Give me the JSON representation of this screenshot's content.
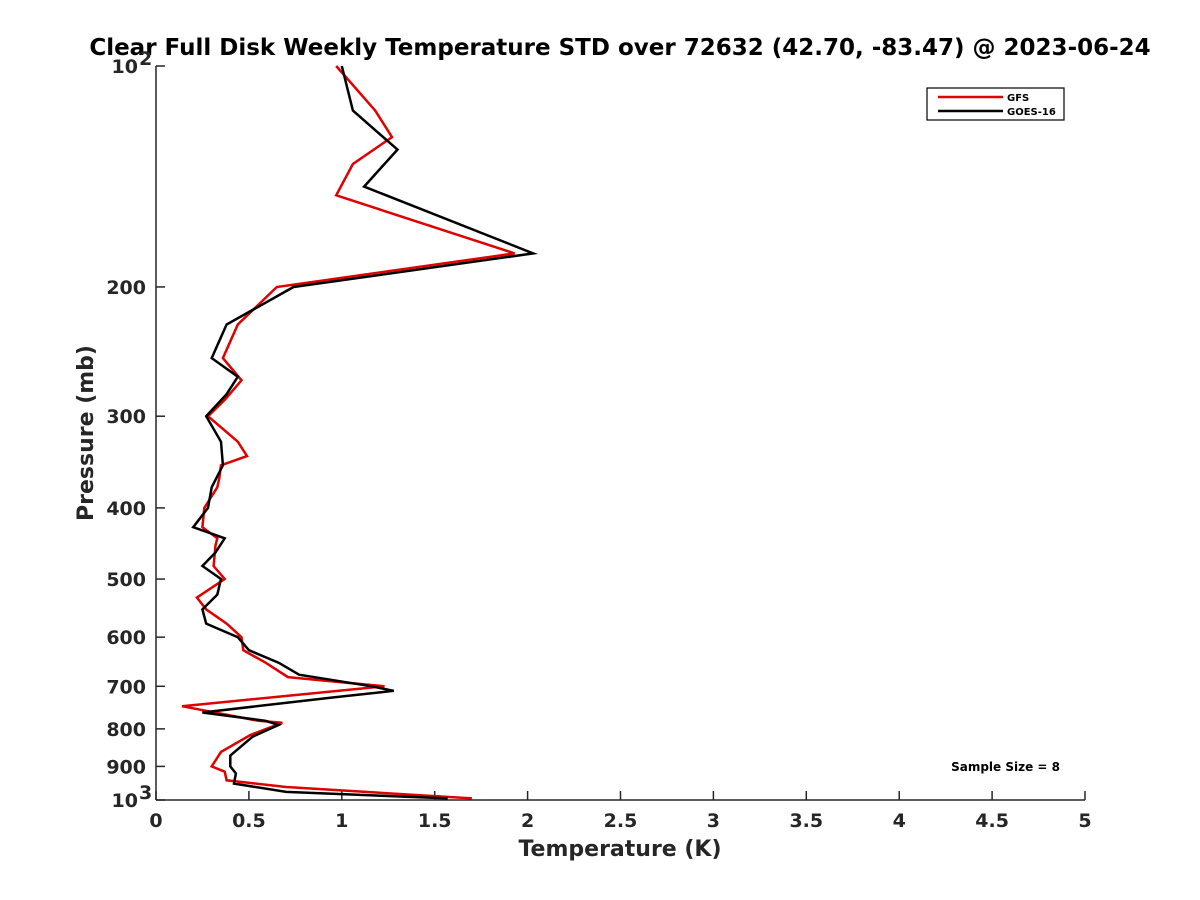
{
  "chart_data": {
    "type": "line",
    "title": "Clear Full Disk Weekly Temperature STD over 72632 (42.70, -83.47) @ 2023-06-24",
    "xlabel": "Temperature (K)",
    "ylabel": "Pressure (mb)",
    "xlim": [
      0,
      5
    ],
    "ylim": [
      100,
      1000
    ],
    "yscale": "log",
    "y_reversed": true,
    "grid": false,
    "x_ticks": [
      "0",
      "0.5",
      "1",
      "1.5",
      "2",
      "2.5",
      "3",
      "3.5",
      "4",
      "4.5",
      "5"
    ],
    "y_ticks": [
      {
        "value": 100,
        "label": "10",
        "sup": "2"
      },
      {
        "value": 200,
        "label": "200"
      },
      {
        "value": 300,
        "label": "300"
      },
      {
        "value": 400,
        "label": "400"
      },
      {
        "value": 500,
        "label": "500"
      },
      {
        "value": 600,
        "label": "600"
      },
      {
        "value": 700,
        "label": "700"
      },
      {
        "value": 800,
        "label": "800"
      },
      {
        "value": 900,
        "label": "900"
      },
      {
        "value": 1000,
        "label": "10",
        "sup": "3"
      }
    ],
    "legend": {
      "placement": "top-right"
    },
    "annotation": "Sample Size = 8",
    "series": [
      {
        "name": "GFS",
        "color": "#e00000",
        "points": [
          [
            0.97,
            100
          ],
          [
            1.18,
            115
          ],
          [
            1.27,
            125
          ],
          [
            1.06,
            136
          ],
          [
            0.97,
            150
          ],
          [
            1.93,
            180
          ],
          [
            0.65,
            200
          ],
          [
            0.44,
            225
          ],
          [
            0.36,
            250
          ],
          [
            0.46,
            268
          ],
          [
            0.37,
            285
          ],
          [
            0.28,
            300
          ],
          [
            0.44,
            325
          ],
          [
            0.49,
            340
          ],
          [
            0.35,
            350
          ],
          [
            0.34,
            365
          ],
          [
            0.33,
            375
          ],
          [
            0.26,
            400
          ],
          [
            0.25,
            425
          ],
          [
            0.33,
            440
          ],
          [
            0.32,
            450
          ],
          [
            0.31,
            480
          ],
          [
            0.37,
            500
          ],
          [
            0.22,
            530
          ],
          [
            0.27,
            550
          ],
          [
            0.38,
            575
          ],
          [
            0.46,
            600
          ],
          [
            0.47,
            625
          ],
          [
            0.59,
            650
          ],
          [
            0.71,
            680
          ],
          [
            1.23,
            700
          ],
          [
            0.14,
            745
          ],
          [
            0.55,
            780
          ],
          [
            0.68,
            785
          ],
          [
            0.51,
            815
          ],
          [
            0.35,
            860
          ],
          [
            0.3,
            900
          ],
          [
            0.37,
            915
          ],
          [
            0.38,
            940
          ],
          [
            0.7,
            960
          ],
          [
            1.7,
            995
          ]
        ]
      },
      {
        "name": "GOES-16",
        "color": "#000000",
        "points": [
          [
            1.0,
            100
          ],
          [
            1.06,
            115
          ],
          [
            1.3,
            130
          ],
          [
            1.12,
            146
          ],
          [
            2.03,
            180
          ],
          [
            0.74,
            200
          ],
          [
            0.38,
            225
          ],
          [
            0.3,
            250
          ],
          [
            0.44,
            265
          ],
          [
            0.38,
            280
          ],
          [
            0.27,
            300
          ],
          [
            0.35,
            325
          ],
          [
            0.36,
            350
          ],
          [
            0.3,
            375
          ],
          [
            0.28,
            400
          ],
          [
            0.2,
            425
          ],
          [
            0.37,
            440
          ],
          [
            0.32,
            460
          ],
          [
            0.25,
            480
          ],
          [
            0.35,
            500
          ],
          [
            0.33,
            525
          ],
          [
            0.25,
            550
          ],
          [
            0.27,
            575
          ],
          [
            0.44,
            600
          ],
          [
            0.5,
            625
          ],
          [
            0.66,
            650
          ],
          [
            0.77,
            675
          ],
          [
            1.16,
            700
          ],
          [
            1.28,
            710
          ],
          [
            0.95,
            725
          ],
          [
            0.25,
            760
          ],
          [
            0.59,
            780
          ],
          [
            0.66,
            790
          ],
          [
            0.52,
            820
          ],
          [
            0.4,
            870
          ],
          [
            0.4,
            900
          ],
          [
            0.43,
            920
          ],
          [
            0.42,
            950
          ],
          [
            0.7,
            975
          ],
          [
            1.57,
            995
          ]
        ]
      }
    ]
  }
}
